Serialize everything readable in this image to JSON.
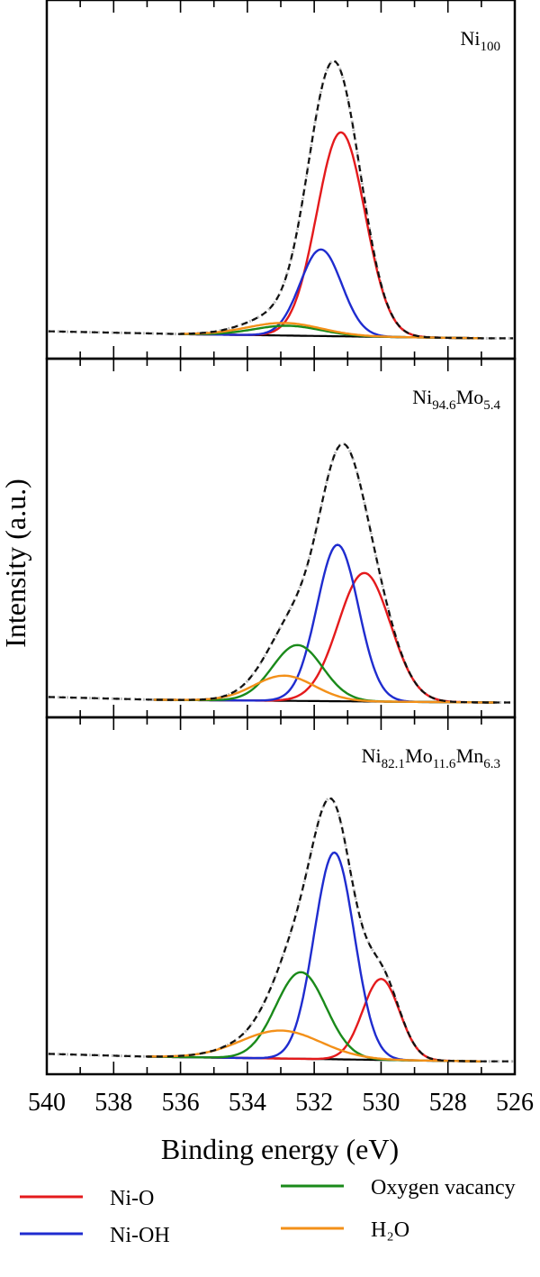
{
  "chart_data": {
    "type": "line",
    "xlabel": "Binding energy (eV)",
    "ylabel": "Intensity (a.u.)",
    "xlim": [
      540,
      526
    ],
    "x_reversed": true,
    "x_ticks": [
      "540",
      "538",
      "536",
      "534",
      "532",
      "530",
      "528",
      "526"
    ],
    "legend_position": "bottom",
    "legend": [
      {
        "label": "Ni-O",
        "color": "#e41a1c"
      },
      {
        "label": "Ni-OH",
        "color": "#1f2ccf"
      },
      {
        "label": "Oxygen vacancy",
        "color": "#1a8a1a"
      },
      {
        "label": "H₂O",
        "color": "#f39019"
      }
    ],
    "panels": [
      {
        "label_base": "Ni",
        "label_sub": "100",
        "label_parts": [
          {
            "t": "Ni",
            "s": "100"
          }
        ],
        "range": [
          536.0,
          527.0
        ],
        "baseline": {
          "left": 0.03,
          "right": 0.015
        },
        "peaks": [
          {
            "name": "Ni-O",
            "color": "#e41a1c",
            "center": 531.2,
            "sigma": 0.72,
            "height": 0.73
          },
          {
            "name": "Ni-OH",
            "color": "#1f2ccf",
            "center": 531.8,
            "sigma": 0.62,
            "height": 0.31
          },
          {
            "name": "Oxygen vacancy",
            "color": "#1a8a1a",
            "center": 532.8,
            "sigma": 1.0,
            "height": 0.035
          },
          {
            "name": "H₂O",
            "color": "#f39019",
            "center": 532.9,
            "sigma": 1.1,
            "height": 0.045
          }
        ]
      },
      {
        "label_base": "Ni",
        "label_sub": "94.6",
        "label_parts": [
          {
            "t": "Ni",
            "s": "94.6"
          },
          {
            "t": "Mo",
            "s": "5.4"
          }
        ],
        "range": [
          536.8,
          526.6
        ],
        "baseline": {
          "left": 0.005,
          "right": -0.005
        },
        "peaks": [
          {
            "name": "Ni-O",
            "color": "#e41a1c",
            "center": 530.5,
            "sigma": 0.78,
            "height": 0.46
          },
          {
            "name": "Ni-OH",
            "color": "#1f2ccf",
            "center": 531.3,
            "sigma": 0.62,
            "height": 0.56
          },
          {
            "name": "Oxygen vacancy",
            "color": "#1a8a1a",
            "center": 532.5,
            "sigma": 0.75,
            "height": 0.2
          },
          {
            "name": "H₂O",
            "color": "#f39019",
            "center": 532.9,
            "sigma": 0.9,
            "height": 0.09
          }
        ]
      },
      {
        "label_base": "Ni",
        "label_sub": "82.1",
        "label_parts": [
          {
            "t": "Ni",
            "s": "82.1"
          },
          {
            "t": "Mo",
            "s": "11.6"
          },
          {
            "t": "Mn",
            "s": "6.3"
          }
        ],
        "range": [
          537.0,
          527.0
        ],
        "baseline": {
          "left": 0.005,
          "right": -0.012
        },
        "peaks": [
          {
            "name": "Ni-O",
            "color": "#e41a1c",
            "center": 530.0,
            "sigma": 0.55,
            "height": 0.29
          },
          {
            "name": "Ni-OH",
            "color": "#1f2ccf",
            "center": 531.4,
            "sigma": 0.6,
            "height": 0.74
          },
          {
            "name": "Oxygen vacancy",
            "color": "#1a8a1a",
            "center": 532.4,
            "sigma": 0.75,
            "height": 0.31
          },
          {
            "name": "H₂O",
            "color": "#f39019",
            "center": 533.0,
            "sigma": 1.2,
            "height": 0.1
          }
        ]
      }
    ]
  }
}
